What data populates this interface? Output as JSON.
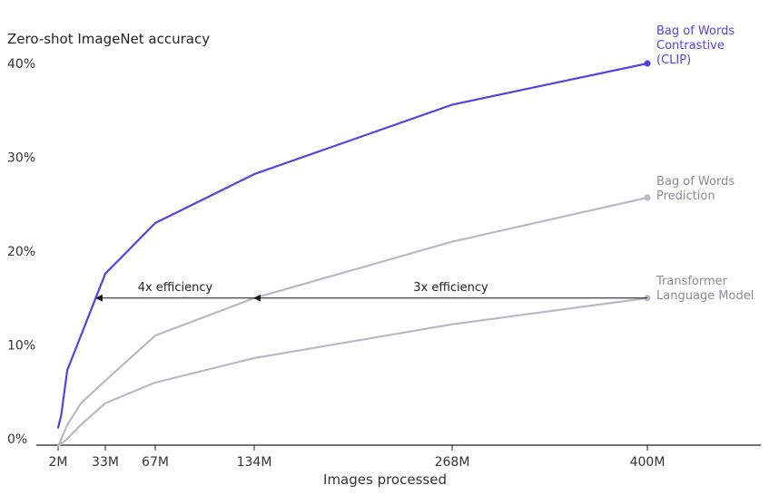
{
  "chart_data": {
    "type": "line",
    "title": "Zero-shot ImageNet accuracy",
    "xlabel": "Images processed",
    "ylabel": "",
    "x_ticks": [
      {
        "value": 2,
        "label": "2M"
      },
      {
        "value": 33,
        "label": "33M"
      },
      {
        "value": 67,
        "label": "67M"
      },
      {
        "value": 134,
        "label": "134M"
      },
      {
        "value": 268,
        "label": "268M"
      },
      {
        "value": 400,
        "label": "400M"
      }
    ],
    "y_ticks": [
      {
        "value": 0,
        "label": "0%"
      },
      {
        "value": 10,
        "label": "10%"
      },
      {
        "value": 20,
        "label": "20%"
      },
      {
        "value": 30,
        "label": "30%"
      },
      {
        "value": 40,
        "label": "40%"
      }
    ],
    "xlim": [
      0,
      475
    ],
    "ylim": [
      -1,
      42
    ],
    "grid": false,
    "series": [
      {
        "name": "Bag of Words Contrastive (CLIP)",
        "label_lines": [
          "Bag of Words",
          "Contrastive",
          "(CLIP)"
        ],
        "color": "#5543e0",
        "x": [
          2,
          4,
          8,
          33,
          67,
          134,
          268,
          400
        ],
        "y": [
          1.2,
          2.5,
          7.3,
          17.6,
          23.0,
          28.2,
          35.6,
          40.0
        ]
      },
      {
        "name": "Bag of Words Prediction",
        "label_lines": [
          "Bag of Words",
          "Prediction"
        ],
        "color": "#b9b9c2",
        "x": [
          2,
          8,
          17,
          33,
          67,
          134,
          268,
          400
        ],
        "y": [
          -0.8,
          1.5,
          3.8,
          6.2,
          11.0,
          15.0,
          21.0,
          25.7
        ]
      },
      {
        "name": "Transformer Language Model",
        "label_lines": [
          "Transformer",
          "Language Model"
        ],
        "color": "#b9b9c2",
        "x": [
          2,
          8,
          17,
          33,
          67,
          134,
          268,
          400
        ],
        "y": [
          -0.8,
          0.0,
          1.5,
          3.8,
          6.0,
          8.6,
          12.2,
          15.0
        ]
      }
    ],
    "annotations": [
      {
        "text": "4x efficiency",
        "x_from": 134,
        "x_to": 27,
        "y": 15.0
      },
      {
        "text": "3x efficiency",
        "x_from": 400,
        "x_to": 134,
        "y": 15.0
      }
    ]
  }
}
